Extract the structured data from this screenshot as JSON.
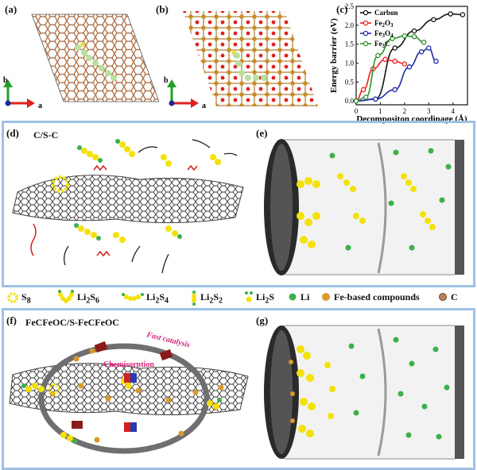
{
  "panels": {
    "a": "(a)",
    "b": "(b)",
    "c": "(c)",
    "d": "(d)",
    "e": "(e)",
    "f": "(f)",
    "g": "(g)"
  },
  "axes_labels": {
    "a_axis_b": "b",
    "a_axis_a": "a",
    "b_axis_b": "b",
    "b_axis_a": "a"
  },
  "section_d": {
    "title": "C/S-C"
  },
  "section_f": {
    "title": "FeCFeOC/S-FeCFeOC",
    "fast_catalysis": "Fast catalysis",
    "chemisorption": "Chemisorption"
  },
  "legend": {
    "items": [
      {
        "label": "S",
        "sub": "8"
      },
      {
        "label": "Li",
        "sub": "2",
        "tail": "S",
        "sub2": "6"
      },
      {
        "label": "Li",
        "sub": "2",
        "tail": "S",
        "sub2": "4"
      },
      {
        "label": "Li",
        "sub": "2",
        "tail": "S",
        "sub2": "2"
      },
      {
        "label": "Li",
        "sub": "2",
        "tail": "S",
        "sub2": ""
      },
      {
        "label": "Li"
      },
      {
        "label": "Fe-based compounds"
      },
      {
        "label": "C"
      }
    ],
    "colors": {
      "sulfur": "#f4e10a",
      "li": "#3cb04a",
      "fe": "#d99a2b",
      "carbon": "#b9805a"
    }
  },
  "chart_data": {
    "type": "line",
    "xlabel": "Decompositon coordinage (Å)",
    "ylabel": "Energy barrier (eV)",
    "xlim": [
      0,
      4.6
    ],
    "ylim": [
      -0.1,
      2.5
    ],
    "xticks": [
      0,
      1,
      2,
      3,
      4
    ],
    "yticks": [
      0.0,
      0.5,
      1.0,
      1.5,
      2.0,
      2.5
    ],
    "legend_position": "top-left",
    "series": [
      {
        "name": "Carbon",
        "color": "#111111",
        "x": [
          0,
          0.8,
          1.6,
          2.4,
          3.2,
          3.9,
          4.4
        ],
        "y": [
          0.0,
          0.05,
          1.4,
          1.85,
          2.15,
          2.3,
          2.28
        ]
      },
      {
        "name": "Fe2O3",
        "color": "#e8231f",
        "x": [
          0,
          0.3,
          0.7,
          1.2,
          1.6,
          2.0
        ],
        "y": [
          0.0,
          0.3,
          0.85,
          1.1,
          1.05,
          0.98
        ]
      },
      {
        "name": "Fe3O4",
        "color": "#1f2aa8",
        "x": [
          0,
          0.8,
          1.6,
          2.2,
          2.7,
          3.0,
          3.3
        ],
        "y": [
          0.0,
          0.05,
          0.3,
          0.9,
          1.3,
          1.4,
          1.05
        ]
      },
      {
        "name": "Fe3C",
        "color": "#2f8f2a",
        "x": [
          0,
          0.4,
          0.9,
          1.5,
          2.0,
          2.4,
          2.8
        ],
        "y": [
          0.0,
          0.1,
          1.2,
          1.65,
          1.72,
          1.7,
          1.55
        ]
      }
    ]
  }
}
